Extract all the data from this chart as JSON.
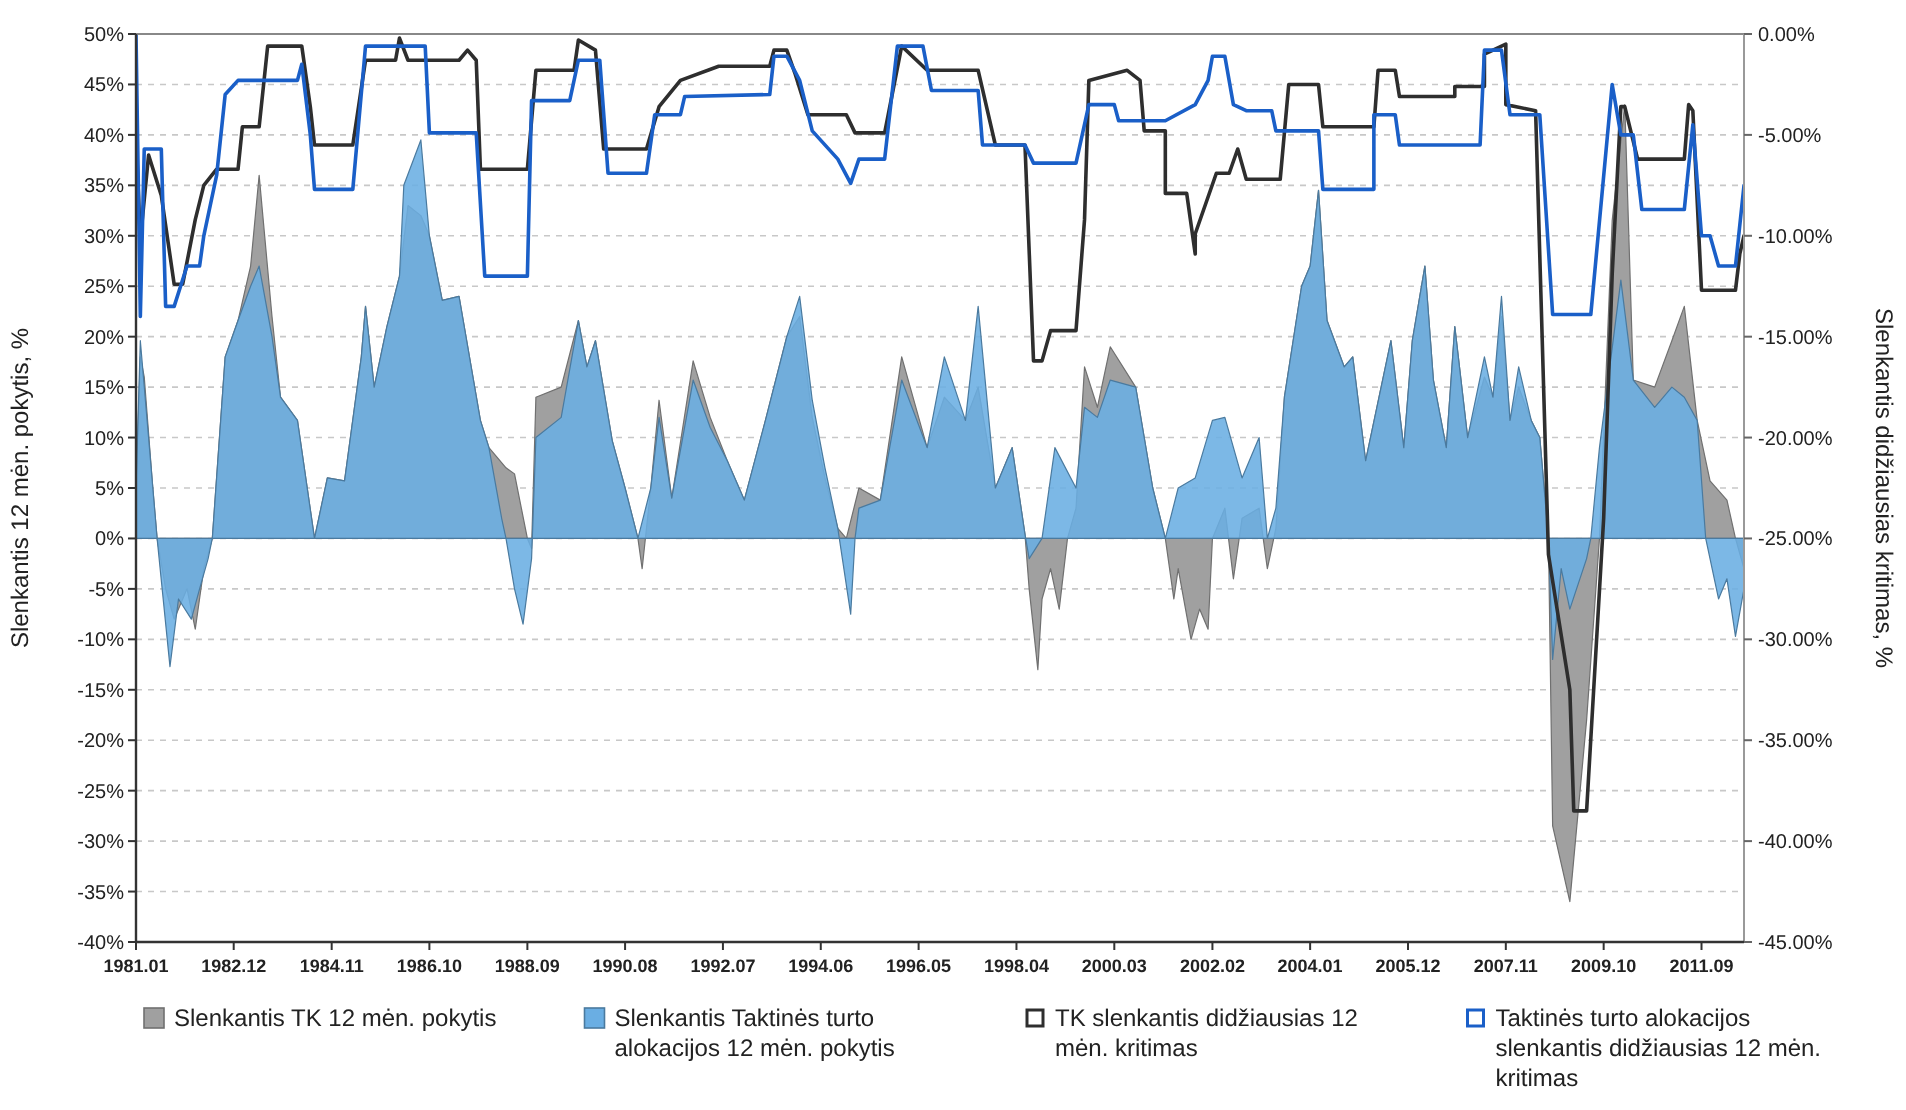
{
  "chart_data": {
    "type": "area",
    "ylabel": "Slenkantis 12 mėn. pokytis, %",
    "y2label": "Slenkantis didžiausias kritimas, %",
    "xlim": [
      "1981-01",
      "2012-07"
    ],
    "xticks": [
      {
        "value": "1981-01",
        "label": "1981.01"
      },
      {
        "value": "1982-12",
        "label": "1982.12"
      },
      {
        "value": "1984-11",
        "label": "1984.11"
      },
      {
        "value": "1986-10",
        "label": "1986.10"
      },
      {
        "value": "1988-09",
        "label": "1988.09"
      },
      {
        "value": "1990-08",
        "label": "1990.08"
      },
      {
        "value": "1992-07",
        "label": "1992.07"
      },
      {
        "value": "1994-06",
        "label": "1994.06"
      },
      {
        "value": "1996-05",
        "label": "1996.05"
      },
      {
        "value": "1998-04",
        "label": "1998.04"
      },
      {
        "value": "2000-03",
        "label": "2000.03"
      },
      {
        "value": "2002-02",
        "label": "2002.02"
      },
      {
        "value": "2004-01",
        "label": "2004.01"
      },
      {
        "value": "2005-12",
        "label": "2005.12"
      },
      {
        "value": "2007-11",
        "label": "2007.11"
      },
      {
        "value": "2009-10",
        "label": "2009.10"
      },
      {
        "value": "2011-09",
        "label": "2011.09"
      }
    ],
    "ylim": [
      -40,
      50
    ],
    "yticks": [
      {
        "value": 50,
        "label": "50%"
      },
      {
        "value": 45,
        "label": "45%"
      },
      {
        "value": 40,
        "label": "40%"
      },
      {
        "value": 35,
        "label": "35%"
      },
      {
        "value": 30,
        "label": "30%"
      },
      {
        "value": 25,
        "label": "25%"
      },
      {
        "value": 20,
        "label": "20%"
      },
      {
        "value": 15,
        "label": "15%"
      },
      {
        "value": 10,
        "label": "10%"
      },
      {
        "value": 5,
        "label": "5%"
      },
      {
        "value": 0,
        "label": "0%"
      },
      {
        "value": -5,
        "label": "-5%"
      },
      {
        "value": -10,
        "label": "-10%"
      },
      {
        "value": -15,
        "label": "-15%"
      },
      {
        "value": -20,
        "label": "-20%"
      },
      {
        "value": -25,
        "label": "-25%"
      },
      {
        "value": -30,
        "label": "-30%"
      },
      {
        "value": -35,
        "label": "-35%"
      },
      {
        "value": -40,
        "label": "-40%"
      }
    ],
    "y2lim": [
      -45,
      0
    ],
    "y2ticks": [
      {
        "value": 0,
        "label": "0.00%"
      },
      {
        "value": -5,
        "label": "-5.00%"
      },
      {
        "value": -10,
        "label": "-10.00%"
      },
      {
        "value": -15,
        "label": "-15.00%"
      },
      {
        "value": -20,
        "label": "-20.00%"
      },
      {
        "value": -25,
        "label": "-25.00%"
      },
      {
        "value": -30,
        "label": "-30.00%"
      },
      {
        "value": -35,
        "label": "-35.00%"
      },
      {
        "value": -40,
        "label": "-40.00%"
      },
      {
        "value": -45,
        "label": "-45.00%"
      }
    ],
    "grid": "y",
    "legend": "bottom",
    "series": [
      {
        "name": "Slenkantis TK 12 mėn. pokytis",
        "color": "#a0a0a0",
        "x": [
          "1981-01",
          "1981-02",
          "1981-03",
          "1981-05",
          "1981-06",
          "1981-08",
          "1981-10",
          "1982-01",
          "1982-03",
          "1982-05",
          "1982-07",
          "1982-10",
          "1983-01",
          "1983-04",
          "1983-06",
          "1983-09",
          "1983-11",
          "1984-03",
          "1984-07",
          "1984-10",
          "1985-02",
          "1985-06",
          "1985-07",
          "1985-09",
          "1985-12",
          "1986-03",
          "1986-05",
          "1986-08",
          "1986-10",
          "1987-01",
          "1987-05",
          "1987-10",
          "1987-12",
          "1988-04",
          "1988-06",
          "1988-09",
          "1988-10",
          "1988-11",
          "1989-05",
          "1989-09",
          "1989-11",
          "1990-01",
          "1990-05",
          "1990-08",
          "1990-11",
          "1990-12",
          "1991-02",
          "1991-04",
          "1991-07",
          "1991-12",
          "1992-04",
          "1992-08",
          "1992-12",
          "1993-05",
          "1993-10",
          "1994-01",
          "1994-04",
          "1994-07",
          "1994-10",
          "1994-12",
          "1995-03",
          "1995-08",
          "1996-01",
          "1996-07",
          "1996-11",
          "1997-04",
          "1997-07",
          "1997-11",
          "1998-03",
          "1998-06",
          "1998-07",
          "1998-09",
          "1998-10",
          "1998-12",
          "1999-02",
          "1999-04",
          "1999-06",
          "1999-08",
          "1999-11",
          "2000-02",
          "2000-08",
          "2000-12",
          "2001-03",
          "2001-05",
          "2001-06",
          "2001-09",
          "2001-11",
          "2002-01",
          "2002-02",
          "2002-05",
          "2002-07",
          "2002-09",
          "2003-01",
          "2003-03",
          "2003-05",
          "2003-07",
          "2003-11",
          "2004-01",
          "2004-03",
          "2004-05",
          "2004-09",
          "2004-11",
          "2005-02",
          "2005-08",
          "2005-11",
          "2006-01",
          "2006-04",
          "2006-06",
          "2006-09",
          "2006-11",
          "2007-02",
          "2007-06",
          "2007-08",
          "2007-10",
          "2007-12",
          "2008-02",
          "2008-05",
          "2008-07",
          "2008-09",
          "2008-10",
          "2009-02",
          "2009-06",
          "2009-09",
          "2009-12",
          "2010-03",
          "2010-05",
          "2010-10",
          "2011-02",
          "2011-05",
          "2011-08",
          "2011-11",
          "2012-03",
          "2012-05",
          "2012-07"
        ],
        "values": [
          5,
          18,
          16,
          5,
          0,
          -5,
          -8,
          -5,
          -9,
          -3,
          0,
          18,
          21.6,
          27,
          36,
          22,
          14,
          11.7,
          0,
          6,
          5.7,
          18,
          23,
          15,
          21,
          26,
          33,
          32,
          30,
          23.6,
          24,
          11.7,
          9,
          7,
          6.4,
          0,
          -1,
          14,
          15,
          21.6,
          17,
          19.6,
          9.7,
          5,
          0,
          -3,
          5,
          13.7,
          4,
          17.6,
          12,
          7.7,
          3.8,
          11.7,
          20,
          22,
          12,
          6,
          1,
          0,
          5,
          3.8,
          18,
          9,
          14,
          11.7,
          15,
          5,
          9,
          0.4,
          -5,
          -13,
          -6,
          -3,
          -7,
          0,
          3,
          17,
          13,
          19,
          15,
          5,
          0,
          -6,
          -3,
          -10,
          -7,
          -9,
          0,
          3,
          -4,
          2,
          3,
          -3,
          1,
          14,
          25,
          27,
          34.5,
          21.6,
          17,
          18,
          7.7,
          19.6,
          9,
          19.6,
          27,
          15.7,
          9,
          21,
          10,
          16,
          14,
          22,
          11.7,
          15,
          11.7,
          10,
          0,
          -28.5,
          -36,
          -18,
          0,
          31.5,
          43,
          15.7,
          15,
          19.6,
          23,
          11.7,
          5.7,
          3.8,
          0,
          -3
        ]
      },
      {
        "name": "Slenkantis Taktinės turto alokacijos 12 mėn. pokytis",
        "color": "#6aaee3",
        "x": [
          "1981-01",
          "1981-02",
          "1981-04",
          "1981-06",
          "1981-09",
          "1981-11",
          "1982-02",
          "1982-04",
          "1982-06",
          "1982-07",
          "1982-10",
          "1983-01",
          "1983-04",
          "1983-06",
          "1983-09",
          "1983-11",
          "1984-03",
          "1984-07",
          "1984-10",
          "1985-02",
          "1985-06",
          "1985-07",
          "1985-09",
          "1985-12",
          "1986-03",
          "1986-04",
          "1986-08",
          "1986-10",
          "1987-01",
          "1987-05",
          "1987-10",
          "1987-12",
          "1988-03",
          "1988-04",
          "1988-06",
          "1988-08",
          "1988-10",
          "1988-11",
          "1989-05",
          "1989-09",
          "1989-11",
          "1990-01",
          "1990-05",
          "1990-08",
          "1990-11",
          "1991-02",
          "1991-04",
          "1991-07",
          "1991-12",
          "1992-04",
          "1992-08",
          "1992-12",
          "1993-05",
          "1993-10",
          "1994-01",
          "1994-04",
          "1994-07",
          "1994-10",
          "1995-01",
          "1995-02",
          "1995-03",
          "1995-08",
          "1996-01",
          "1996-07",
          "1996-11",
          "1997-04",
          "1997-07",
          "1997-11",
          "1998-03",
          "1998-06",
          "1998-07",
          "1998-10",
          "1999-01",
          "1999-06",
          "1999-08",
          "1999-11",
          "2000-02",
          "2000-08",
          "2000-12",
          "2001-03",
          "2001-06",
          "2001-10",
          "2002-02",
          "2002-05",
          "2002-09",
          "2003-01",
          "2003-03",
          "2003-05",
          "2003-07",
          "2003-11",
          "2004-01",
          "2004-03",
          "2004-05",
          "2004-09",
          "2004-11",
          "2005-02",
          "2005-08",
          "2005-11",
          "2006-01",
          "2006-04",
          "2006-06",
          "2006-09",
          "2006-11",
          "2007-02",
          "2007-06",
          "2007-08",
          "2007-10",
          "2007-12",
          "2008-02",
          "2008-05",
          "2008-07",
          "2008-09",
          "2008-10",
          "2008-12",
          "2009-02",
          "2009-06",
          "2009-07",
          "2009-09",
          "2010-02",
          "2010-05",
          "2010-10",
          "2011-02",
          "2011-05",
          "2011-08",
          "2011-10",
          "2012-01",
          "2012-03",
          "2012-05",
          "2012-07"
        ],
        "values": [
          5,
          19.6,
          10,
          0,
          -12.7,
          -6,
          -8,
          -5,
          -2,
          0,
          18,
          21.6,
          25,
          27,
          20,
          14,
          11.7,
          0,
          6,
          5.7,
          18,
          23,
          15,
          21,
          26,
          35,
          39.5,
          30,
          23.6,
          24,
          11.7,
          9,
          2,
          0,
          -5,
          -8.5,
          -2,
          10,
          12,
          21.6,
          17,
          19.6,
          9.7,
          5,
          0,
          5,
          12,
          4,
          15.7,
          11,
          7.7,
          3.8,
          11.7,
          20,
          24,
          13.7,
          7,
          1,
          -7.5,
          0,
          3,
          3.8,
          15.7,
          9,
          18,
          11.7,
          23,
          5,
          9,
          0.4,
          -2,
          0,
          9,
          5,
          13,
          12,
          15.7,
          15,
          5,
          0,
          5,
          6,
          11.7,
          12,
          6,
          10,
          0,
          3,
          14,
          25,
          27,
          34.5,
          21.6,
          17,
          18,
          7.7,
          19.6,
          9,
          19.6,
          27,
          15.7,
          9,
          21,
          10,
          18,
          14,
          24,
          11.7,
          17,
          11.7,
          10,
          0,
          -12,
          -3,
          -7,
          -2,
          0,
          9,
          25.6,
          15.7,
          13,
          15,
          14,
          11.7,
          0,
          -6,
          -4,
          -9.7,
          -5
        ]
      },
      {
        "name": "TK slenkantis didžiausias 12 mėn. kritimas",
        "type": "line",
        "axis": "y2",
        "color": "#2e2e2e",
        "x": [
          "1981-01",
          "1981-02",
          "1981-04",
          "1981-07",
          "1981-10",
          "1981-12",
          "1982-03",
          "1982-05",
          "1982-08",
          "1983-01",
          "1983-02",
          "1983-06",
          "1983-08",
          "1984-04",
          "1984-06",
          "1984-07",
          "1985-04",
          "1985-07",
          "1986-02",
          "1986-03",
          "1986-05",
          "1987-05",
          "1987-07",
          "1987-09",
          "1987-10",
          "1988-09",
          "1988-11",
          "1989-08",
          "1989-09",
          "1990-01",
          "1990-03",
          "1991-01",
          "1991-04",
          "1991-09",
          "1992-06",
          "1993-06",
          "1993-07",
          "1993-10",
          "1993-12",
          "1994-03",
          "1994-12",
          "1995-02",
          "1995-09",
          "1996-01",
          "1996-07",
          "1997-07",
          "1997-11",
          "1998-06",
          "1998-08",
          "1998-10",
          "1998-12",
          "1999-06",
          "1999-08",
          "1999-09",
          "2000-06",
          "2000-09",
          "2000-10",
          "2001-03",
          "2001-03",
          "2001-08",
          "2001-10",
          "2001-10",
          "2002-03",
          "2002-06",
          "2002-08",
          "2002-10",
          "2003-06",
          "2003-08",
          "2004-03",
          "2004-04",
          "2005-04",
          "2005-05",
          "2005-09",
          "2005-10",
          "2006-11",
          "2006-11",
          "2007-06",
          "2007-06",
          "2007-11",
          "2007-11",
          "2008-06",
          "2008-09",
          "2009-02",
          "2009-03",
          "2009-06",
          "2009-10",
          "2009-12",
          "2010-02",
          "2010-03",
          "2010-06",
          "2011-05",
          "2011-06",
          "2011-07",
          "2011-09",
          "2012-05",
          "2012-06",
          "2012-07"
        ],
        "values": [
          -5,
          -10.2,
          -6,
          -8,
          -12.4,
          -12.4,
          -9.2,
          -7.5,
          -6.7,
          -6.7,
          -4.6,
          -4.6,
          -0.6,
          -0.6,
          -3.6,
          -5.5,
          -5.5,
          -1.3,
          -1.3,
          -0.2,
          -1.3,
          -1.3,
          -0.8,
          -1.3,
          -6.7,
          -6.7,
          -1.8,
          -1.8,
          -0.3,
          -0.8,
          -5.7,
          -5.7,
          -3.6,
          -2.3,
          -1.6,
          -1.6,
          -0.8,
          -0.8,
          -2,
          -4,
          -4,
          -4.9,
          -4.9,
          -0.6,
          -1.8,
          -1.8,
          -5.5,
          -5.5,
          -16.2,
          -16.2,
          -14.7,
          -14.7,
          -9.2,
          -2.3,
          -1.8,
          -2.3,
          -4.8,
          -4.8,
          -7.9,
          -7.9,
          -10.9,
          -9.9,
          -6.9,
          -6.9,
          -5.7,
          -7.2,
          -7.2,
          -2.5,
          -2.5,
          -4.6,
          -4.6,
          -1.8,
          -1.8,
          -3.1,
          -3.1,
          -2.6,
          -2.6,
          -1,
          -0.5,
          -3.5,
          -3.8,
          -25.8,
          -32.5,
          -38.5,
          -38.5,
          -24,
          -11.9,
          -3.6,
          -3.6,
          -6.2,
          -6.2,
          -3.5,
          -3.8,
          -12.7,
          -12.7,
          -10.9,
          -10
        ]
      },
      {
        "name": "Taktinės turto alokacijos slenkantis didžiausias 12 mėn. kritimas",
        "type": "line",
        "axis": "y2",
        "color": "#1a5fc8",
        "x": [
          "1981-01",
          "1981-02",
          "1981-03",
          "1981-07",
          "1981-08",
          "1981-10",
          "1982-01",
          "1982-04",
          "1982-05",
          "1982-08",
          "1982-10",
          "1983-01",
          "1984-03",
          "1984-04",
          "1984-06",
          "1984-07",
          "1985-04",
          "1985-07",
          "1986-09",
          "1986-10",
          "1987-09",
          "1987-11",
          "1988-09",
          "1988-10",
          "1989-07",
          "1989-09",
          "1990-02",
          "1990-04",
          "1991-01",
          "1991-03",
          "1991-09",
          "1991-10",
          "1993-06",
          "1993-07",
          "1993-10",
          "1994-01",
          "1994-04",
          "1994-10",
          "1995-01",
          "1995-03",
          "1995-09",
          "1995-12",
          "1996-06",
          "1996-08",
          "1997-07",
          "1997-08",
          "1998-06",
          "1998-08",
          "1999-06",
          "1999-09",
          "2000-03",
          "2000-04",
          "2001-03",
          "2001-10",
          "2002-01",
          "2002-02",
          "2002-05",
          "2002-07",
          "2002-10",
          "2003-04",
          "2003-05",
          "2004-03",
          "2004-04",
          "2005-04",
          "2005-04",
          "2005-09",
          "2005-10",
          "2007-05",
          "2007-06",
          "2007-10",
          "2007-12",
          "2008-07",
          "2008-10",
          "2009-07",
          "2009-12",
          "2010-02",
          "2010-05",
          "2010-07",
          "2011-05",
          "2011-07",
          "2011-09",
          "2011-11",
          "2012-01",
          "2012-05",
          "2012-07"
        ],
        "values": [
          0,
          -14,
          -5.7,
          -5.7,
          -13.5,
          -13.5,
          -11.5,
          -11.5,
          -10,
          -7,
          -3,
          -2.3,
          -2.3,
          -1.5,
          -5,
          -7.7,
          -7.7,
          -0.6,
          -0.6,
          -4.9,
          -4.9,
          -12,
          -12,
          -3.3,
          -3.3,
          -1.3,
          -1.3,
          -6.9,
          -6.9,
          -4,
          -4,
          -3.1,
          -3,
          -1.1,
          -1.1,
          -2.3,
          -4.8,
          -6.2,
          -7.4,
          -6.2,
          -6.2,
          -0.6,
          -0.6,
          -2.8,
          -2.8,
          -5.5,
          -5.5,
          -6.4,
          -6.4,
          -3.5,
          -3.5,
          -4.3,
          -4.3,
          -3.5,
          -2.3,
          -1.1,
          -1.1,
          -3.5,
          -3.8,
          -3.8,
          -4.8,
          -4.8,
          -7.7,
          -7.7,
          -4,
          -4,
          -5.5,
          -5.5,
          -0.8,
          -0.8,
          -4,
          -4,
          -13.9,
          -13.9,
          -2.5,
          -5,
          -5,
          -8.7,
          -8.7,
          -4.5,
          -10,
          -10,
          -11.5,
          -11.5,
          -7.5
        ]
      }
    ]
  }
}
